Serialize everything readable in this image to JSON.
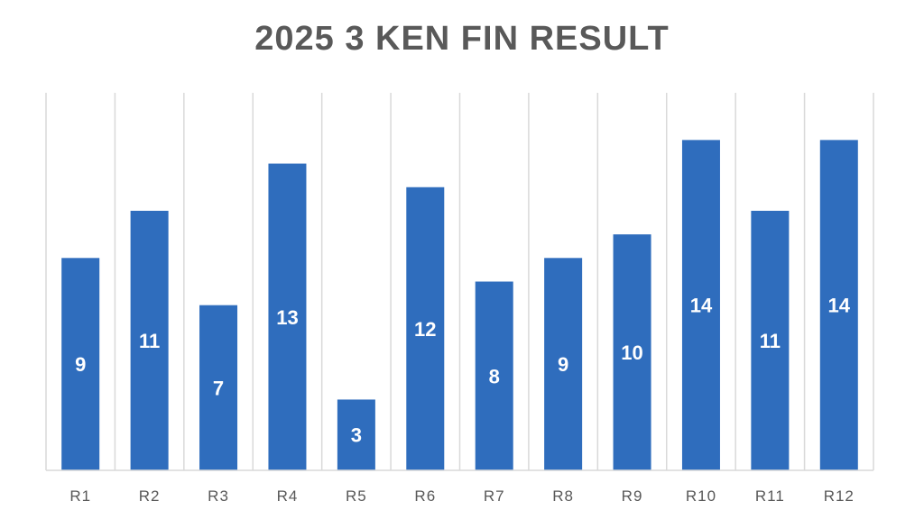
{
  "chart_data": {
    "type": "bar",
    "title": "2025 3 KEN FIN RESULT",
    "categories": [
      "R1",
      "R2",
      "R3",
      "R4",
      "R5",
      "R6",
      "R7",
      "R8",
      "R9",
      "R10",
      "R11",
      "R12"
    ],
    "values": [
      9,
      11,
      7,
      13,
      3,
      12,
      8,
      9,
      10,
      14,
      11,
      14
    ],
    "ylim": [
      0,
      16
    ],
    "grid": "vertical",
    "data_labels": "inside",
    "bar_color": "#2f6dbd"
  }
}
